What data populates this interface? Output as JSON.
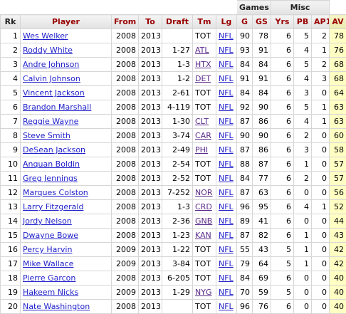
{
  "table": {
    "groups": [
      "Games",
      "Misc"
    ],
    "columns": [
      "Rk",
      "Player",
      "From",
      "To",
      "Draft",
      "Tm",
      "Lg",
      "G",
      "GS",
      "Yrs",
      "PB",
      "AP1",
      "AV"
    ],
    "rows": [
      [
        1,
        "Wes Welker",
        2008,
        2013,
        null,
        "TOT",
        "NFL",
        90,
        78,
        6,
        5,
        2,
        78
      ],
      [
        2,
        "Roddy White",
        2008,
        2013,
        "1-27",
        "ATL",
        "NFL",
        93,
        91,
        6,
        4,
        1,
        76
      ],
      [
        3,
        "Andre Johnson",
        2008,
        2013,
        "1-3",
        "HTX",
        "NFL",
        84,
        84,
        6,
        5,
        2,
        68
      ],
      [
        4,
        "Calvin Johnson",
        2008,
        2013,
        "1-2",
        "DET",
        "NFL",
        91,
        91,
        6,
        4,
        3,
        68
      ],
      [
        5,
        "Vincent Jackson",
        2008,
        2013,
        "2-61",
        "TOT",
        "NFL",
        84,
        84,
        6,
        3,
        0,
        64
      ],
      [
        6,
        "Brandon Marshall",
        2008,
        2013,
        "4-119",
        "TOT",
        "NFL",
        92,
        90,
        6,
        5,
        1,
        63
      ],
      [
        7,
        "Reggie Wayne",
        2008,
        2013,
        "1-30",
        "CLT",
        "NFL",
        87,
        86,
        6,
        4,
        1,
        63
      ],
      [
        8,
        "Steve Smith",
        2008,
        2013,
        "3-74",
        "CAR",
        "NFL",
        90,
        90,
        6,
        2,
        0,
        60
      ],
      [
        9,
        "DeSean Jackson",
        2008,
        2013,
        "2-49",
        "PHI",
        "NFL",
        87,
        86,
        6,
        3,
        0,
        58
      ],
      [
        10,
        "Anquan Boldin",
        2008,
        2013,
        "2-54",
        "TOT",
        "NFL",
        88,
        87,
        6,
        1,
        0,
        57
      ],
      [
        11,
        "Greg Jennings",
        2008,
        2013,
        "2-52",
        "TOT",
        "NFL",
        84,
        77,
        6,
        2,
        0,
        57
      ],
      [
        12,
        "Marques Colston",
        2008,
        2013,
        "7-252",
        "NOR",
        "NFL",
        87,
        63,
        6,
        0,
        0,
        56
      ],
      [
        13,
        "Larry Fitzgerald",
        2008,
        2013,
        "1-3",
        "CRD",
        "NFL",
        96,
        95,
        6,
        4,
        1,
        52
      ],
      [
        14,
        "Jordy Nelson",
        2008,
        2013,
        "2-36",
        "GNB",
        "NFL",
        89,
        41,
        6,
        0,
        0,
        44
      ],
      [
        15,
        "Dwayne Bowe",
        2008,
        2013,
        "1-23",
        "KAN",
        "NFL",
        87,
        82,
        6,
        1,
        0,
        43
      ],
      [
        16,
        "Percy Harvin",
        2009,
        2013,
        "1-22",
        "TOT",
        "NFL",
        55,
        43,
        5,
        1,
        0,
        42
      ],
      [
        17,
        "Mike Wallace",
        2009,
        2013,
        "3-84",
        "TOT",
        "NFL",
        79,
        64,
        5,
        1,
        0,
        42
      ],
      [
        18,
        "Pierre Garcon",
        2008,
        2013,
        "6-205",
        "TOT",
        "NFL",
        84,
        69,
        6,
        0,
        0,
        40
      ],
      [
        19,
        "Hakeem Nicks",
        2009,
        2013,
        "1-29",
        "NYG",
        "NFL",
        70,
        59,
        5,
        0,
        0,
        40
      ],
      [
        20,
        "Nate Washington",
        2008,
        2013,
        null,
        "TOT",
        "NFL",
        96,
        76,
        6,
        0,
        0,
        40
      ]
    ]
  }
}
